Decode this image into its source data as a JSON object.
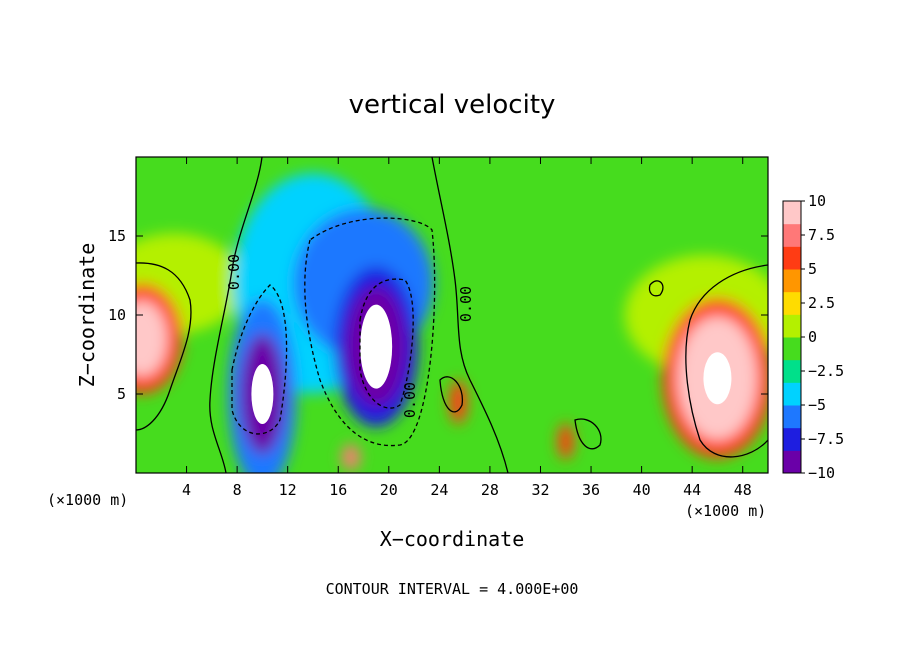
{
  "chart_data": {
    "type": "heatmap",
    "title": "vertical velocity",
    "xlabel": "X−coordinate",
    "ylabel": "Z−coordinate",
    "x_unit_left": "(×1000 m)",
    "x_unit_right": "(×1000 m)",
    "xlim": [
      0,
      50
    ],
    "ylim": [
      0,
      20
    ],
    "xticks": [
      4,
      8,
      12,
      16,
      20,
      24,
      28,
      32,
      36,
      40,
      44,
      48
    ],
    "yticks": [
      5,
      10,
      15
    ],
    "colorbar": {
      "ticks": [
        "10",
        "7.5",
        "5",
        "2.5",
        "0",
        "−2.5",
        "−5",
        "−7.5",
        "−10"
      ],
      "range": [
        -10,
        10
      ],
      "colors": [
        "#6a00a8",
        "#1e1ee0",
        "#1e78ff",
        "#00d2ff",
        "#00e08a",
        "#46dc1e",
        "#b4f000",
        "#ffdc00",
        "#ff9600",
        "#ff3c14",
        "#ff7878",
        "#ffc8c8"
      ]
    },
    "contour_labels": [
      "0.00",
      "0.00",
      "0.00"
    ],
    "contour_interval_text": "CONTOUR INTERVAL = 4.000E+00",
    "features": [
      {
        "kind": "updraft",
        "x": 0.5,
        "z": 8.5,
        "value": 9
      },
      {
        "kind": "downdraft",
        "x": 10,
        "z": 5,
        "value": -12
      },
      {
        "kind": "downdraft",
        "x": 19,
        "z": 8,
        "value": -12
      },
      {
        "kind": "downdraft_region",
        "x": 18,
        "z": 12,
        "value": -6
      },
      {
        "kind": "updraft",
        "x": 46,
        "z": 6,
        "value": 12
      },
      {
        "kind": "updraft",
        "x": 17,
        "z": 1,
        "value": 7
      },
      {
        "kind": "updraft",
        "x": 34,
        "z": 2,
        "value": 6
      },
      {
        "kind": "updraft",
        "x": 25.5,
        "z": 4.5,
        "value": 5
      }
    ]
  }
}
